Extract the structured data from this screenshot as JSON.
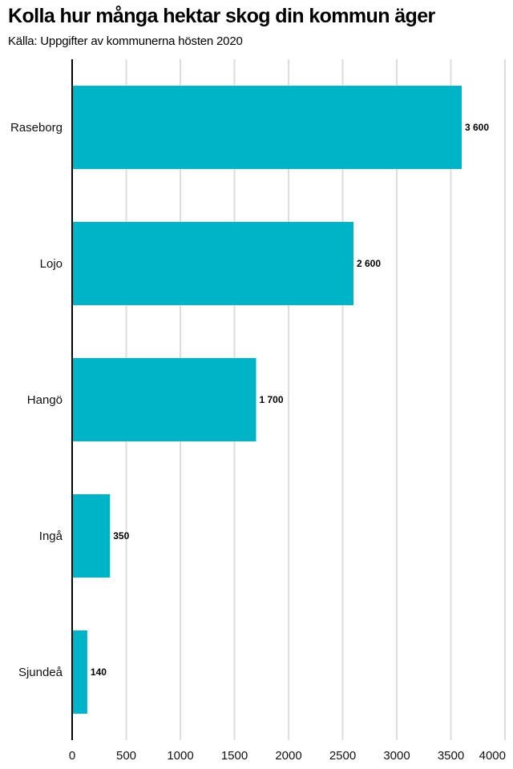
{
  "chart_data": {
    "type": "bar",
    "orientation": "horizontal",
    "title": "Kolla hur många hektar skog din kommun äger",
    "subtitle": "Källa: Uppgifter av kommunerna hösten 2020",
    "categories": [
      "Raseborg",
      "Lojo",
      "Hangö",
      "Ingå",
      "Sjundeå"
    ],
    "values": [
      3600,
      2600,
      1700,
      350,
      140
    ],
    "value_labels": [
      "3 600",
      "2 600",
      "1 700",
      "350",
      "140"
    ],
    "xlim": [
      0,
      4000
    ],
    "xticks": [
      0,
      500,
      1000,
      1500,
      2000,
      2500,
      3000,
      3500,
      4000
    ],
    "xtick_labels": [
      "0",
      "500",
      "1000",
      "1500",
      "2000",
      "2500",
      "3000",
      "3500",
      "4000"
    ],
    "grid": "vertical",
    "bar_color": "#00b4c8",
    "grid_color": "#dddddd",
    "axis_color": "#000000"
  }
}
